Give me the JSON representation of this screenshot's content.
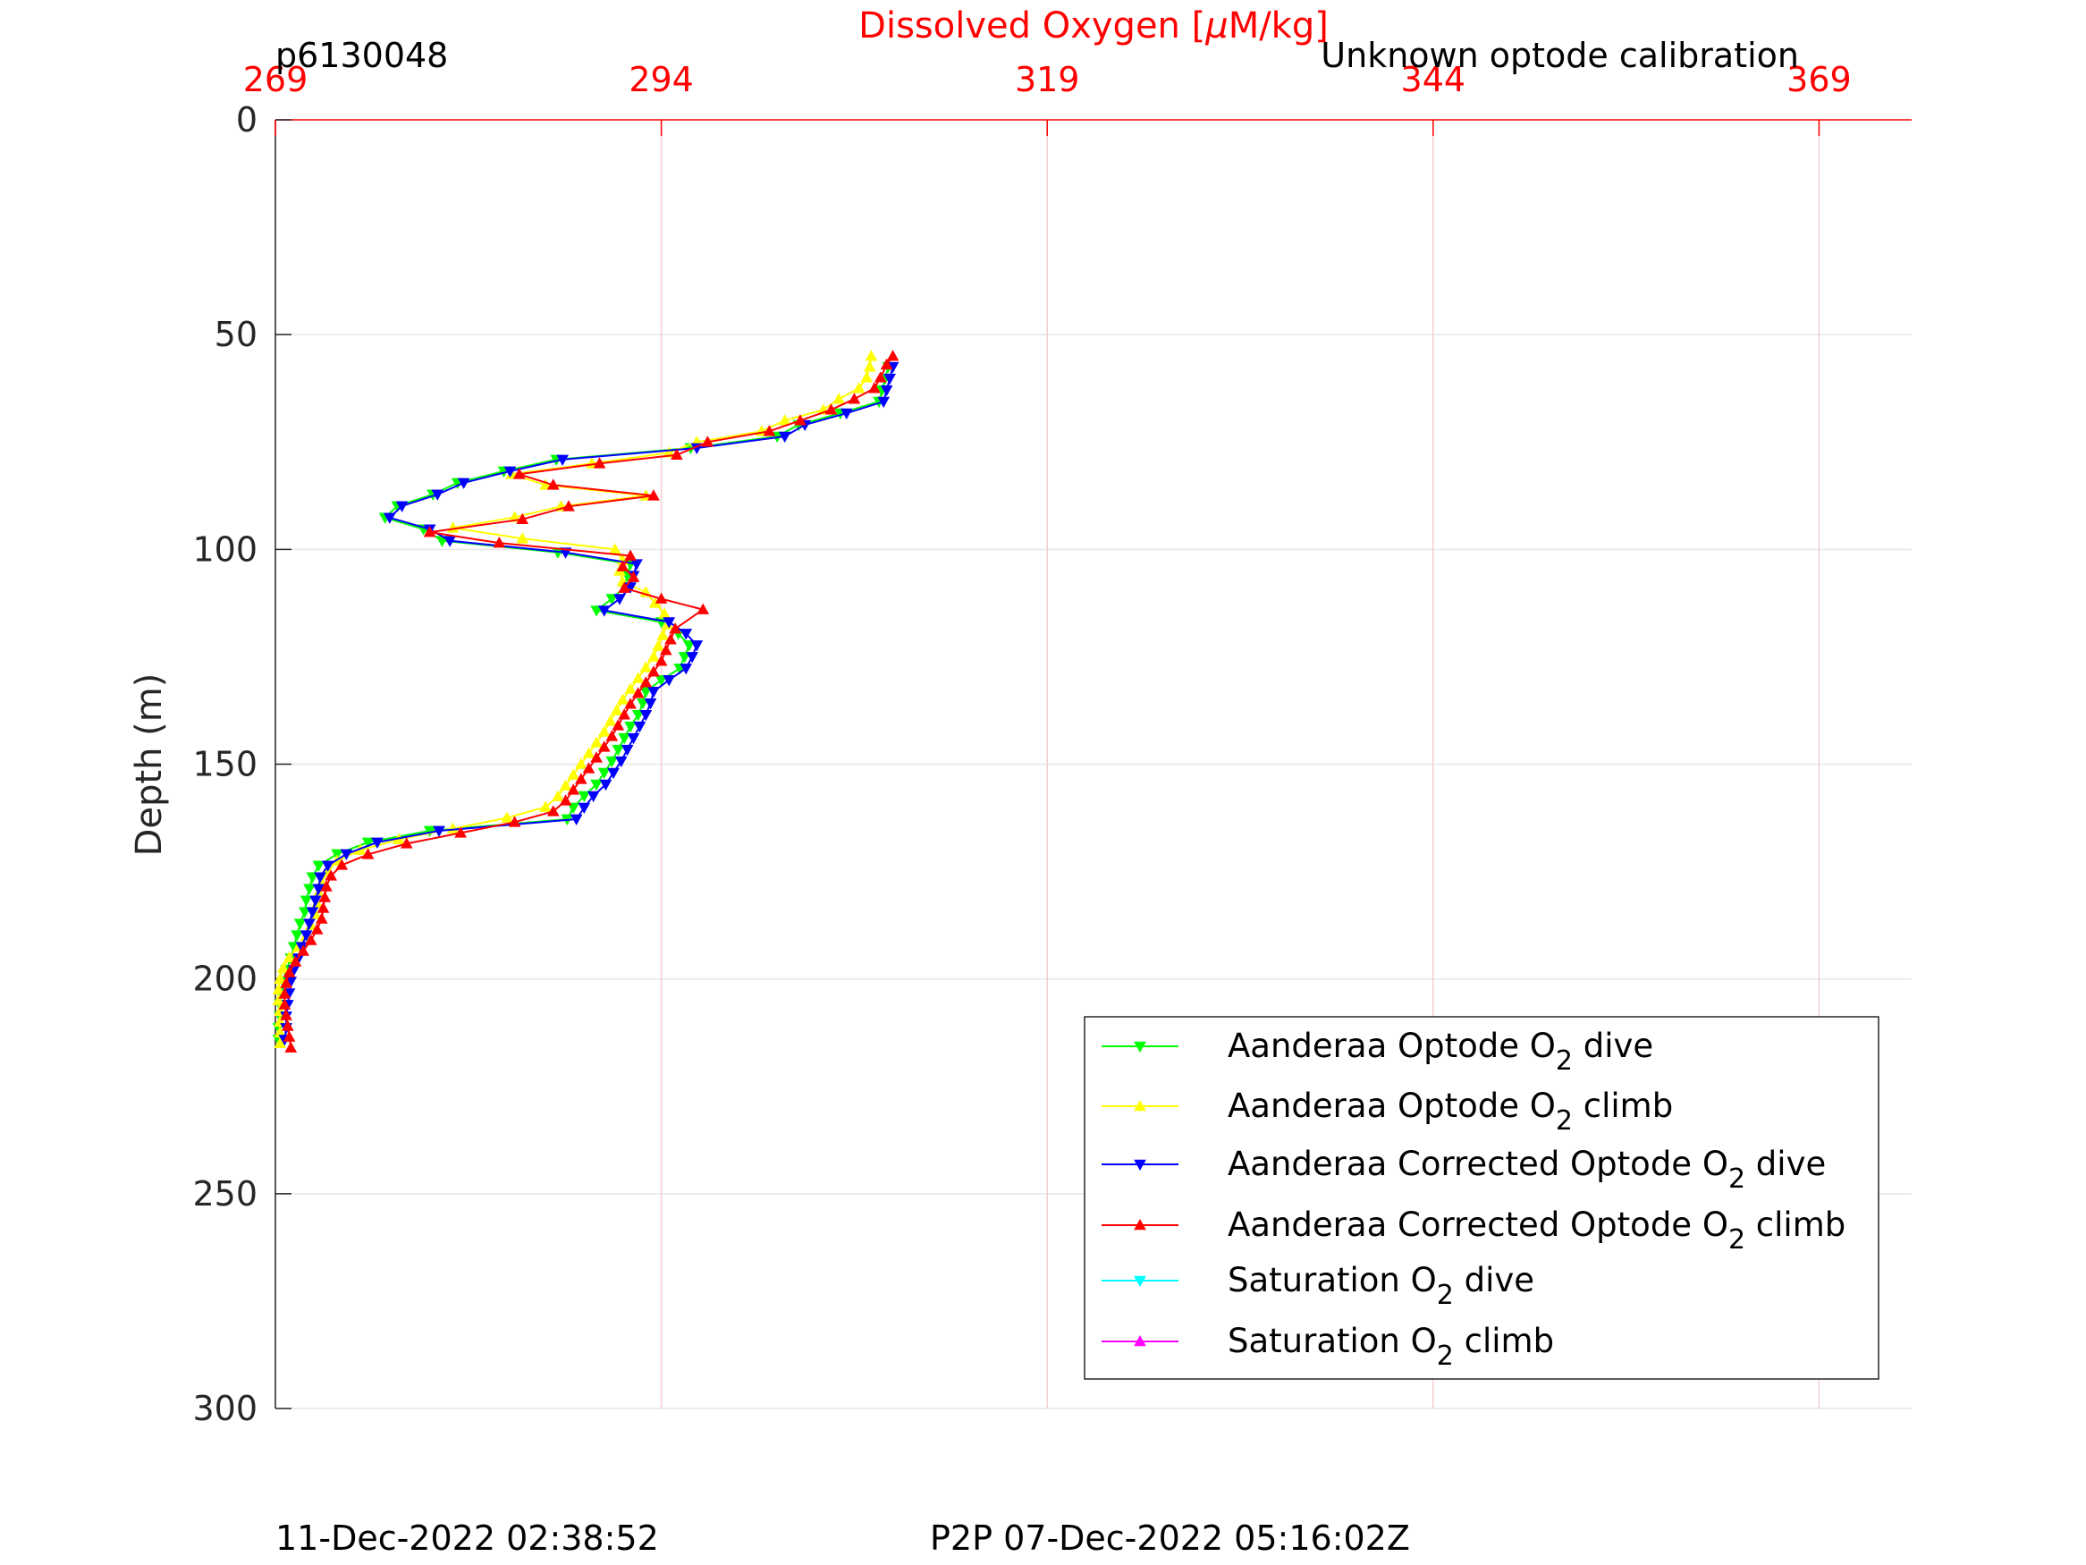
{
  "header": {
    "glider_id": "p6130048",
    "calibration_note": "Unknown optode calibration"
  },
  "footer": {
    "plot_time": "11-Dec-2022 02:38:52",
    "p2p_time": "P2P 07-Dec-2022 05:16:02Z"
  },
  "chart_data": {
    "type": "line",
    "title": "",
    "xlabel_prefix": "Dissolved Oxygen [",
    "xlabel_mu": "μ",
    "xlabel_suffix": "M/kg]",
    "ylabel": "Depth (m)",
    "xlim": [
      269,
      375
    ],
    "ylim": [
      0,
      300
    ],
    "y_reversed": true,
    "x_ticks": [
      269,
      294,
      319,
      344,
      369
    ],
    "y_ticks": [
      0,
      50,
      100,
      150,
      200,
      250,
      300
    ],
    "grid": true,
    "legend_position": "bottom-right",
    "series": [
      {
        "name": "Aanderaa Optode O2 dive",
        "label_main": "Aanderaa Optode O",
        "label_sub": "2",
        "label_end": " dive",
        "color": "#00ff00",
        "marker": "triangle-down",
        "points": [
          [
            308.7,
            57.5
          ],
          [
            308.5,
            60.2
          ],
          [
            308.3,
            62.9
          ],
          [
            308.1,
            65.6
          ],
          [
            305.6,
            68.3
          ],
          [
            302.9,
            71.0
          ],
          [
            301.5,
            73.7
          ],
          [
            295.9,
            76.4
          ],
          [
            287.2,
            79.1
          ],
          [
            283.8,
            81.8
          ],
          [
            280.8,
            84.5
          ],
          [
            279.2,
            87.2
          ],
          [
            276.9,
            89.9
          ],
          [
            276.1,
            92.6
          ],
          [
            278.6,
            95.3
          ],
          [
            279.8,
            98.0
          ],
          [
            287.3,
            100.7
          ],
          [
            292.0,
            103.4
          ],
          [
            291.8,
            106.1
          ],
          [
            291.6,
            108.8
          ],
          [
            290.8,
            111.5
          ],
          [
            289.8,
            114.2
          ],
          [
            294.0,
            116.9
          ],
          [
            295.1,
            119.6
          ],
          [
            295.8,
            122.3
          ],
          [
            295.5,
            125.0
          ],
          [
            295.2,
            127.7
          ],
          [
            294.0,
            130.4
          ],
          [
            293.0,
            133.1
          ],
          [
            292.8,
            135.8
          ],
          [
            292.5,
            138.5
          ],
          [
            292.0,
            141.2
          ],
          [
            291.6,
            143.9
          ],
          [
            291.2,
            146.6
          ],
          [
            290.8,
            149.3
          ],
          [
            290.3,
            152.0
          ],
          [
            289.8,
            154.7
          ],
          [
            289.0,
            157.4
          ],
          [
            288.3,
            160.1
          ],
          [
            287.9,
            162.8
          ],
          [
            279.0,
            165.5
          ],
          [
            275.0,
            168.2
          ],
          [
            273.0,
            170.9
          ],
          [
            271.8,
            173.6
          ],
          [
            271.4,
            176.3
          ],
          [
            271.2,
            179.0
          ],
          [
            271.0,
            181.7
          ],
          [
            270.9,
            184.4
          ],
          [
            270.6,
            187.1
          ],
          [
            270.4,
            189.8
          ],
          [
            270.2,
            192.5
          ],
          [
            270.0,
            195.2
          ],
          [
            269.7,
            197.9
          ],
          [
            269.5,
            200.6
          ],
          [
            269.4,
            203.3
          ],
          [
            269.3,
            206.0
          ],
          [
            269.3,
            208.7
          ],
          [
            269.2,
            211.4
          ],
          [
            269.2,
            214.1
          ]
        ]
      },
      {
        "name": "Aanderaa Optode O2 climb",
        "label_main": "Aanderaa Optode O",
        "label_sub": "2",
        "label_end": " climb",
        "color": "#ffff00",
        "marker": "triangle-up",
        "points": [
          [
            269.3,
            215.0
          ],
          [
            269.3,
            212.5
          ],
          [
            269.3,
            210.0
          ],
          [
            269.3,
            207.5
          ],
          [
            269.2,
            205.0
          ],
          [
            269.2,
            202.5
          ],
          [
            269.3,
            200.0
          ],
          [
            269.5,
            197.5
          ],
          [
            269.9,
            195.0
          ],
          [
            270.5,
            192.5
          ],
          [
            271.0,
            190.0
          ],
          [
            271.3,
            187.5
          ],
          [
            271.6,
            185.0
          ],
          [
            271.7,
            182.5
          ],
          [
            271.8,
            180.0
          ],
          [
            272.0,
            177.5
          ],
          [
            272.4,
            175.0
          ],
          [
            273.0,
            172.5
          ],
          [
            274.5,
            170.0
          ],
          [
            277.0,
            167.5
          ],
          [
            280.5,
            165.0
          ],
          [
            284.0,
            162.5
          ],
          [
            286.5,
            160.0
          ],
          [
            287.3,
            157.5
          ],
          [
            287.8,
            155.0
          ],
          [
            288.3,
            152.5
          ],
          [
            288.8,
            150.0
          ],
          [
            289.3,
            147.5
          ],
          [
            289.8,
            145.0
          ],
          [
            290.3,
            142.5
          ],
          [
            290.7,
            140.0
          ],
          [
            291.1,
            137.5
          ],
          [
            291.5,
            135.0
          ],
          [
            292.0,
            132.5
          ],
          [
            292.5,
            130.0
          ],
          [
            293.0,
            127.5
          ],
          [
            293.5,
            125.0
          ],
          [
            293.8,
            122.5
          ],
          [
            294.1,
            120.0
          ],
          [
            294.4,
            117.5
          ],
          [
            294.2,
            115.0
          ],
          [
            293.6,
            112.5
          ],
          [
            293.0,
            110.0
          ],
          [
            291.5,
            107.5
          ],
          [
            291.3,
            105.0
          ],
          [
            291.5,
            102.5
          ],
          [
            291.0,
            100.0
          ],
          [
            285.0,
            97.5
          ],
          [
            280.5,
            95.0
          ],
          [
            284.5,
            92.5
          ],
          [
            287.5,
            90.0
          ],
          [
            293.0,
            87.5
          ],
          [
            286.5,
            85.0
          ],
          [
            284.3,
            82.5
          ],
          [
            289.5,
            80.0
          ],
          [
            294.5,
            77.5
          ],
          [
            296.3,
            75.0
          ],
          [
            300.5,
            72.5
          ],
          [
            302.0,
            70.0
          ],
          [
            304.5,
            67.5
          ],
          [
            305.5,
            65.0
          ],
          [
            306.8,
            62.5
          ],
          [
            307.3,
            60.0
          ],
          [
            307.5,
            57.5
          ],
          [
            307.6,
            55.0
          ]
        ]
      },
      {
        "name": "Aanderaa Corrected Optode O2 dive",
        "label_main": "Aanderaa Corrected Optode O",
        "label_sub": "2",
        "label_end": " dive",
        "color": "#0000ff",
        "marker": "triangle-down",
        "points": [
          [
            309.0,
            57.5
          ],
          [
            308.8,
            60.2
          ],
          [
            308.6,
            62.9
          ],
          [
            308.4,
            65.6
          ],
          [
            306.0,
            68.3
          ],
          [
            303.3,
            71.0
          ],
          [
            302.0,
            73.7
          ],
          [
            296.3,
            76.4
          ],
          [
            287.6,
            79.1
          ],
          [
            284.2,
            81.8
          ],
          [
            281.2,
            84.5
          ],
          [
            279.5,
            87.2
          ],
          [
            277.2,
            89.9
          ],
          [
            276.4,
            92.6
          ],
          [
            279.0,
            95.3
          ],
          [
            280.3,
            98.0
          ],
          [
            287.8,
            100.7
          ],
          [
            292.4,
            103.4
          ],
          [
            292.2,
            106.1
          ],
          [
            292.0,
            108.8
          ],
          [
            291.3,
            111.5
          ],
          [
            290.3,
            114.2
          ],
          [
            294.5,
            116.9
          ],
          [
            295.6,
            119.6
          ],
          [
            296.3,
            122.3
          ],
          [
            296.0,
            125.0
          ],
          [
            295.6,
            127.7
          ],
          [
            294.5,
            130.4
          ],
          [
            293.5,
            133.1
          ],
          [
            293.3,
            135.8
          ],
          [
            293.0,
            138.5
          ],
          [
            292.6,
            141.2
          ],
          [
            292.2,
            143.9
          ],
          [
            291.8,
            146.6
          ],
          [
            291.4,
            149.3
          ],
          [
            290.9,
            152.0
          ],
          [
            290.4,
            154.7
          ],
          [
            289.6,
            157.4
          ],
          [
            289.0,
            160.1
          ],
          [
            288.5,
            162.8
          ],
          [
            279.6,
            165.5
          ],
          [
            275.6,
            168.2
          ],
          [
            273.6,
            170.9
          ],
          [
            272.4,
            173.6
          ],
          [
            271.9,
            176.3
          ],
          [
            271.8,
            179.0
          ],
          [
            271.6,
            181.7
          ],
          [
            271.4,
            184.4
          ],
          [
            271.2,
            187.1
          ],
          [
            271.0,
            189.8
          ],
          [
            270.7,
            192.5
          ],
          [
            270.5,
            195.2
          ],
          [
            270.2,
            197.9
          ],
          [
            270.0,
            200.6
          ],
          [
            269.9,
            203.3
          ],
          [
            269.8,
            206.0
          ],
          [
            269.7,
            208.7
          ],
          [
            269.7,
            211.4
          ],
          [
            269.6,
            214.1
          ]
        ]
      },
      {
        "name": "Aanderaa Corrected Optode O2 climb",
        "label_main": "Aanderaa Corrected Optode O",
        "label_sub": "2",
        "label_end": " climb",
        "color": "#ff0000",
        "marker": "triangle-up",
        "points": [
          [
            270.0,
            216.0
          ],
          [
            269.9,
            213.5
          ],
          [
            269.8,
            211.0
          ],
          [
            269.7,
            208.5
          ],
          [
            269.6,
            206.0
          ],
          [
            269.6,
            203.5
          ],
          [
            269.7,
            201.0
          ],
          [
            269.9,
            198.5
          ],
          [
            270.3,
            196.0
          ],
          [
            270.8,
            193.5
          ],
          [
            271.3,
            191.0
          ],
          [
            271.7,
            188.5
          ],
          [
            272.0,
            186.0
          ],
          [
            272.1,
            183.5
          ],
          [
            272.2,
            181.0
          ],
          [
            272.3,
            178.5
          ],
          [
            272.6,
            176.0
          ],
          [
            273.3,
            173.5
          ],
          [
            275.0,
            171.0
          ],
          [
            277.5,
            168.5
          ],
          [
            281.0,
            166.0
          ],
          [
            284.5,
            163.5
          ],
          [
            287.0,
            161.0
          ],
          [
            287.8,
            158.5
          ],
          [
            288.3,
            156.0
          ],
          [
            288.8,
            153.5
          ],
          [
            289.3,
            151.0
          ],
          [
            289.8,
            148.5
          ],
          [
            290.3,
            146.0
          ],
          [
            290.8,
            143.5
          ],
          [
            291.2,
            141.0
          ],
          [
            291.6,
            138.5
          ],
          [
            292.0,
            136.0
          ],
          [
            292.5,
            133.5
          ],
          [
            293.0,
            131.0
          ],
          [
            293.5,
            128.5
          ],
          [
            294.0,
            126.0
          ],
          [
            294.3,
            123.5
          ],
          [
            294.6,
            121.0
          ],
          [
            294.9,
            118.5
          ],
          [
            296.7,
            114.0
          ],
          [
            294.0,
            111.5
          ],
          [
            291.6,
            109.0
          ],
          [
            292.2,
            106.5
          ],
          [
            291.5,
            104.0
          ],
          [
            292.0,
            101.5
          ],
          [
            283.5,
            98.5
          ],
          [
            279.0,
            96.0
          ],
          [
            285.0,
            93.0
          ],
          [
            288.0,
            90.0
          ],
          [
            293.5,
            87.5
          ],
          [
            287.0,
            85.0
          ],
          [
            284.8,
            82.5
          ],
          [
            290.0,
            80.0
          ],
          [
            295.0,
            78.0
          ],
          [
            297.0,
            75.0
          ],
          [
            301.0,
            72.5
          ],
          [
            303.0,
            70.0
          ],
          [
            305.0,
            67.5
          ],
          [
            306.5,
            65.0
          ],
          [
            307.8,
            62.5
          ],
          [
            308.2,
            60.0
          ],
          [
            308.6,
            57.0
          ],
          [
            309.0,
            55.0
          ]
        ]
      },
      {
        "name": "Saturation O2 dive",
        "label_main": "Saturation O",
        "label_sub": "2",
        "label_end": " dive",
        "color": "#00ffff",
        "marker": "triangle-down",
        "points": []
      },
      {
        "name": "Saturation O2 climb",
        "label_main": "Saturation O",
        "label_sub": "2",
        "label_end": " climb",
        "color": "#ff00ff",
        "marker": "triangle-up",
        "points": []
      }
    ]
  }
}
